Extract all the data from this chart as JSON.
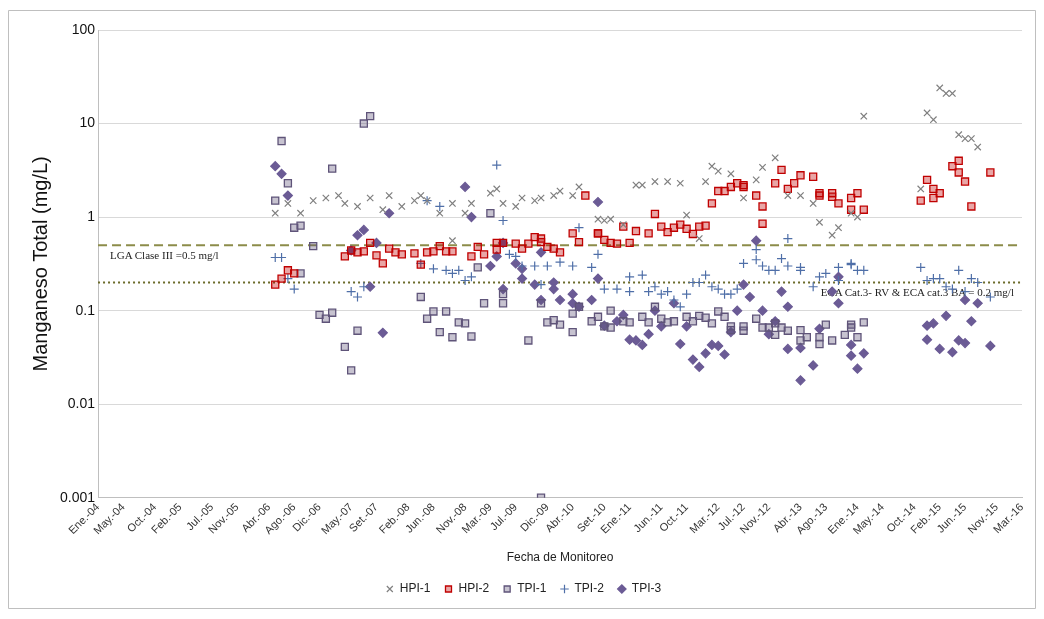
{
  "chart_data": {
    "type": "scatter",
    "xlabel": "Fecha de Monitoreo",
    "ylabel": "Manganeso Total (mg/L)",
    "log": "y",
    "grid": "y",
    "legend": "bottom",
    "xlim": [
      "2004-01",
      "2016-03"
    ],
    "xticks": [
      {
        "value": "2004-01",
        "label": "Ene.-04"
      },
      {
        "value": "2004-05",
        "label": "May.-04"
      },
      {
        "value": "2004-10",
        "label": "Oct.-04"
      },
      {
        "value": "2005-02",
        "label": "Feb.-05"
      },
      {
        "value": "2005-07",
        "label": "Jul.-05"
      },
      {
        "value": "2005-11",
        "label": "Nov.-05"
      },
      {
        "value": "2006-04",
        "label": "Abr.-06"
      },
      {
        "value": "2006-08",
        "label": "Ago.-06"
      },
      {
        "value": "2006-12",
        "label": "Dic.-06"
      },
      {
        "value": "2007-05",
        "label": "May.-07"
      },
      {
        "value": "2007-09",
        "label": "Set.-07"
      },
      {
        "value": "2008-02",
        "label": "Feb.-08"
      },
      {
        "value": "2008-06",
        "label": "Jun.-08"
      },
      {
        "value": "2008-11",
        "label": "Nov.-08"
      },
      {
        "value": "2009-03",
        "label": "Mar.-09"
      },
      {
        "value": "2009-07",
        "label": "Jul.-09"
      },
      {
        "value": "2009-12",
        "label": "Dic.-09"
      },
      {
        "value": "2010-04",
        "label": "Abr.-10"
      },
      {
        "value": "2010-09",
        "label": "Set.-10"
      },
      {
        "value": "2011-01",
        "label": "Ene.-11"
      },
      {
        "value": "2011-06",
        "label": "Jun.-11"
      },
      {
        "value": "2011-10",
        "label": "Oct.-11"
      },
      {
        "value": "2012-03",
        "label": "Mar.-12"
      },
      {
        "value": "2012-07",
        "label": "Jul.-12"
      },
      {
        "value": "2012-11",
        "label": "Nov.-12"
      },
      {
        "value": "2013-04",
        "label": "Abr.-13"
      },
      {
        "value": "2013-08",
        "label": "Ago.-13"
      },
      {
        "value": "2014-01",
        "label": "Ene.-14"
      },
      {
        "value": "2014-05",
        "label": "May.-14"
      },
      {
        "value": "2014-10",
        "label": "Oct.-14"
      },
      {
        "value": "2015-02",
        "label": "Feb.-15"
      },
      {
        "value": "2015-06",
        "label": "Jun.-15"
      },
      {
        "value": "2015-11",
        "label": "Nov.-15"
      },
      {
        "value": "2016-03",
        "label": "Mar.-16"
      }
    ],
    "ylim": [
      0.001,
      100
    ],
    "yticks": [
      0.001,
      0.01,
      0.1,
      1,
      10,
      100
    ],
    "ref_lines": [
      {
        "axis": "y",
        "value": 0.5,
        "label": "LGA Clase III =0.5 mg/l",
        "color": "#8c8c4a",
        "line_style": "dashed"
      },
      {
        "axis": "y",
        "value": 0.2,
        "label": "ECA Cat.3- RV & ECA cat.3 BA = 0.2 mg/l",
        "color": "#6b6b2a",
        "line_style": "dotted"
      }
    ],
    "series": [
      {
        "name": "HPI-1",
        "color": "#808080",
        "marker": "x",
        "x": [
          "2006-05",
          "2006-07",
          "2006-09",
          "2006-11",
          "2007-01",
          "2007-03",
          "2007-04",
          "2007-06",
          "2007-08",
          "2007-10",
          "2007-11",
          "2008-01",
          "2008-03",
          "2008-04",
          "2008-05",
          "2008-07",
          "2008-09",
          "2008-09",
          "2008-11",
          "2008-12",
          "2009-03",
          "2009-04",
          "2009-05",
          "2009-07",
          "2009-08",
          "2009-10",
          "2009-11",
          "2010-01",
          "2010-02",
          "2010-04",
          "2010-05",
          "2010-08",
          "2010-09",
          "2010-10",
          "2010-12",
          "2011-02",
          "2011-03",
          "2011-05",
          "2011-07",
          "2011-09",
          "2011-10",
          "2011-12",
          "2012-01",
          "2012-02",
          "2012-03",
          "2012-05",
          "2012-07",
          "2012-09",
          "2012-10",
          "2012-12",
          "2013-02",
          "2013-04",
          "2013-06",
          "2013-07",
          "2013-09",
          "2013-10",
          "2013-12",
          "2014-01",
          "2014-02",
          "2014-11",
          "2014-12",
          "2015-01",
          "2015-02",
          "2015-03",
          "2015-04",
          "2015-05",
          "2015-06",
          "2015-07",
          "2015-08"
        ],
        "values": [
          1.1,
          1.4,
          1.1,
          1.5,
          1.6,
          1.7,
          1.4,
          1.3,
          1.6,
          1.2,
          1.7,
          1.3,
          1.5,
          1.7,
          1.5,
          1.1,
          1.4,
          0.56,
          1.1,
          1.4,
          1.8,
          2,
          1.4,
          1.3,
          1.6,
          1.5,
          1.6,
          1.7,
          1.9,
          1.7,
          2.1,
          0.95,
          0.92,
          0.95,
          0.83,
          2.2,
          2.2,
          2.4,
          2.4,
          2.3,
          1.05,
          0.59,
          2.4,
          3.5,
          3.1,
          2.9,
          1.6,
          2.5,
          3.4,
          4.3,
          1.7,
          1.7,
          1.4,
          0.88,
          0.64,
          0.77,
          1.1,
          1,
          12,
          2,
          13,
          11,
          24,
          21,
          21,
          7.6,
          6.9,
          6.9,
          5.6
        ]
      },
      {
        "name": "HPI-2",
        "color": "#c00000",
        "marker": "square",
        "x": [
          "2006-05",
          "2006-06",
          "2006-07",
          "2006-08",
          "2007-04",
          "2007-05",
          "2007-06",
          "2007-07",
          "2007-08",
          "2007-09",
          "2007-10",
          "2007-11",
          "2007-12",
          "2008-01",
          "2008-03",
          "2008-04",
          "2008-05",
          "2008-06",
          "2008-07",
          "2008-08",
          "2008-09",
          "2008-12",
          "2009-01",
          "2009-02",
          "2009-04",
          "2009-04",
          "2009-05",
          "2009-07",
          "2009-08",
          "2009-09",
          "2009-10",
          "2009-11",
          "2009-11",
          "2009-12",
          "2010-01",
          "2010-02",
          "2010-04",
          "2010-05",
          "2010-06",
          "2010-08",
          "2010-08",
          "2010-09",
          "2010-10",
          "2010-11",
          "2010-12",
          "2011-01",
          "2011-02",
          "2011-04",
          "2011-05",
          "2011-06",
          "2011-07",
          "2011-08",
          "2011-09",
          "2011-10",
          "2011-11",
          "2011-12",
          "2012-01",
          "2012-02",
          "2012-03",
          "2012-04",
          "2012-05",
          "2012-06",
          "2012-07",
          "2012-07",
          "2012-09",
          "2012-10",
          "2012-10",
          "2012-12",
          "2013-01",
          "2013-02",
          "2013-03",
          "2013-04",
          "2013-06",
          "2013-07",
          "2013-07",
          "2013-09",
          "2013-09",
          "2013-10",
          "2013-12",
          "2013-12",
          "2014-01",
          "2014-02",
          "2014-11",
          "2014-12",
          "2015-01",
          "2015-01",
          "2015-02",
          "2015-04",
          "2015-05",
          "2015-05",
          "2015-06",
          "2015-07",
          "2015-10"
        ],
        "values": [
          0.19,
          0.22,
          0.27,
          0.25,
          0.38,
          0.44,
          0.42,
          0.43,
          0.53,
          0.39,
          0.32,
          0.46,
          0.42,
          0.4,
          0.41,
          0.31,
          0.42,
          0.43,
          0.49,
          0.43,
          0.43,
          0.38,
          0.48,
          0.4,
          0.45,
          0.53,
          0.53,
          0.52,
          0.46,
          0.52,
          0.61,
          0.54,
          0.59,
          0.48,
          0.46,
          0.42,
          0.67,
          0.54,
          1.7,
          0.67,
          0.67,
          0.57,
          0.53,
          0.52,
          0.79,
          0.53,
          0.71,
          0.67,
          1.08,
          0.79,
          0.69,
          0.77,
          0.83,
          0.75,
          0.66,
          0.79,
          0.81,
          1.4,
          1.9,
          1.9,
          2.1,
          2.3,
          2.2,
          2.1,
          1.7,
          1.3,
          0.85,
          2.3,
          3.2,
          2,
          2.3,
          2.8,
          2.7,
          1.7,
          1.8,
          1.8,
          1.65,
          1.4,
          1.6,
          1.2,
          1.8,
          1.2,
          1.5,
          2.5,
          2,
          1.6,
          1.8,
          3.5,
          4,
          3,
          2.4,
          1.3,
          3
        ]
      },
      {
        "name": "TPI-1",
        "color": "#5f5479",
        "marker": "square",
        "x": [
          "2006-05",
          "2006-06",
          "2006-07",
          "2006-08",
          "2006-09",
          "2006-09",
          "2006-11",
          "2006-12",
          "2007-01",
          "2007-02",
          "2007-02",
          "2007-04",
          "2007-05",
          "2007-06",
          "2007-07",
          "2007-08",
          "2008-04",
          "2008-05",
          "2008-06",
          "2008-07",
          "2008-08",
          "2008-09",
          "2008-10",
          "2008-11",
          "2008-12",
          "2009-01",
          "2009-02",
          "2009-03",
          "2009-05",
          "2009-05",
          "2009-09",
          "2009-11",
          "2009-11",
          "2009-12",
          "2010-01",
          "2010-02",
          "2010-04",
          "2010-04",
          "2010-05",
          "2010-07",
          "2010-08",
          "2010-09",
          "2010-10",
          "2010-10",
          "2010-12",
          "2011-01",
          "2011-03",
          "2011-04",
          "2011-05",
          "2011-06",
          "2011-07",
          "2011-08",
          "2011-10",
          "2011-11",
          "2011-12",
          "2012-01",
          "2012-02",
          "2012-03",
          "2012-04",
          "2012-05",
          "2012-05",
          "2012-07",
          "2012-07",
          "2012-09",
          "2012-10",
          "2012-11",
          "2012-12",
          "2012-12",
          "2013-01",
          "2013-02",
          "2013-04",
          "2013-04",
          "2013-05",
          "2013-07",
          "2013-07",
          "2013-08",
          "2013-09",
          "2013-11",
          "2013-12",
          "2013-12",
          "2014-01",
          "2014-02"
        ],
        "values": [
          1.5,
          6.5,
          2.3,
          0.77,
          0.81,
          0.25,
          0.49,
          0.09,
          0.082,
          0.095,
          3.3,
          0.041,
          0.023,
          0.061,
          10,
          12,
          0.14,
          0.082,
          0.098,
          0.059,
          0.098,
          0.052,
          0.075,
          0.073,
          0.053,
          0.29,
          0.12,
          1.1,
          0.15,
          0.12,
          0.048,
          0.001,
          0.12,
          0.075,
          0.079,
          0.071,
          0.059,
          0.093,
          0.11,
          0.077,
          0.086,
          0.068,
          0.1,
          0.066,
          0.077,
          0.075,
          0.086,
          0.075,
          0.11,
          0.082,
          0.075,
          0.077,
          0.086,
          0.077,
          0.088,
          0.084,
          0.073,
          0.098,
          0.086,
          0.062,
          0.068,
          0.061,
          0.068,
          0.082,
          0.066,
          0.066,
          0.073,
          0.055,
          0.066,
          0.061,
          0.048,
          0.062,
          0.052,
          0.044,
          0.052,
          0.071,
          0.048,
          0.055,
          0.066,
          0.071,
          0.052,
          0.075
        ]
      },
      {
        "name": "TPI-2",
        "color": "#4f6fa8",
        "marker": "cross",
        "x": [
          "2006-05",
          "2006-06",
          "2006-07",
          "2006-08",
          "2007-05",
          "2007-06",
          "2007-07",
          "2008-04",
          "2008-05",
          "2008-06",
          "2008-07",
          "2008-08",
          "2008-09",
          "2008-10",
          "2008-11",
          "2008-12",
          "2009-04",
          "2009-05",
          "2009-06",
          "2009-07",
          "2009-08",
          "2009-10",
          "2009-11",
          "2009-12",
          "2010-02",
          "2010-04",
          "2010-05",
          "2010-07",
          "2010-08",
          "2010-09",
          "2010-11",
          "2011-01",
          "2011-01",
          "2011-03",
          "2011-04",
          "2011-05",
          "2011-06",
          "2011-07",
          "2011-08",
          "2011-09",
          "2011-10",
          "2011-11",
          "2011-12",
          "2012-01",
          "2012-02",
          "2012-03",
          "2012-04",
          "2012-05",
          "2012-06",
          "2012-07",
          "2012-09",
          "2012-09",
          "2012-10",
          "2012-11",
          "2012-12",
          "2013-01",
          "2013-02",
          "2013-02",
          "2013-04",
          "2013-04",
          "2013-06",
          "2013-07",
          "2013-08",
          "2013-10",
          "2013-10",
          "2013-12",
          "2013-12",
          "2014-01",
          "2014-02",
          "2014-11",
          "2014-12",
          "2015-01",
          "2015-02",
          "2015-03",
          "2015-04",
          "2015-05",
          "2015-06",
          "2015-07",
          "2015-08",
          "2015-10"
        ],
        "values": [
          0.37,
          0.37,
          0.22,
          0.17,
          0.16,
          0.14,
          0.18,
          0.32,
          1.5,
          0.28,
          1.3,
          0.27,
          0.25,
          0.27,
          0.21,
          0.23,
          3.6,
          0.92,
          0.4,
          0.38,
          0.3,
          0.3,
          0.19,
          0.3,
          0.33,
          0.3,
          0.77,
          0.29,
          0.4,
          0.17,
          0.17,
          0.23,
          0.16,
          0.24,
          0.16,
          0.18,
          0.15,
          0.16,
          0.13,
          0.11,
          0.15,
          0.2,
          0.2,
          0.24,
          0.18,
          0.17,
          0.15,
          0.15,
          0.17,
          0.32,
          0.45,
          0.35,
          0.3,
          0.27,
          0.27,
          0.36,
          0.59,
          0.3,
          0.27,
          0.29,
          0.18,
          0.23,
          0.25,
          0.21,
          0.29,
          0.32,
          0.31,
          0.27,
          0.27,
          0.29,
          0.21,
          0.22,
          0.22,
          0.18,
          0.17,
          0.27,
          0.16,
          0.22,
          0.2,
          0.14
        ]
      },
      {
        "name": "TPI-3",
        "color": "#6b5b95",
        "marker": "diamond",
        "x": [
          "2006-05",
          "2006-06",
          "2006-07",
          "2007-05",
          "2007-06",
          "2007-07",
          "2007-08",
          "2007-09",
          "2007-10",
          "2007-11",
          "2008-11",
          "2008-12",
          "2009-03",
          "2009-04",
          "2009-05",
          "2009-05",
          "2009-07",
          "2009-08",
          "2009-08",
          "2009-10",
          "2009-11",
          "2009-11",
          "2010-01",
          "2010-01",
          "2010-02",
          "2010-04",
          "2010-04",
          "2010-05",
          "2010-07",
          "2010-08",
          "2010-08",
          "2010-09",
          "2010-11",
          "2010-12",
          "2011-01",
          "2011-02",
          "2011-03",
          "2011-04",
          "2011-05",
          "2011-06",
          "2011-08",
          "2011-09",
          "2011-10",
          "2011-11",
          "2011-12",
          "2012-01",
          "2012-02",
          "2012-03",
          "2012-04",
          "2012-05",
          "2012-06",
          "2012-07",
          "2012-08",
          "2012-09",
          "2012-10",
          "2012-11",
          "2012-12",
          "2013-01",
          "2013-02",
          "2013-02",
          "2013-04",
          "2013-04",
          "2013-06",
          "2013-07",
          "2013-09",
          "2013-10",
          "2013-10",
          "2013-12",
          "2013-12",
          "2014-01",
          "2014-02",
          "2014-12",
          "2014-12",
          "2015-01",
          "2015-02",
          "2015-03",
          "2015-04",
          "2015-05",
          "2015-06",
          "2015-06",
          "2015-07",
          "2015-08",
          "2015-10"
        ],
        "values": [
          3.5,
          2.9,
          1.7,
          0.44,
          0.64,
          0.73,
          0.18,
          0.53,
          0.058,
          1.1,
          2.1,
          1,
          0.3,
          0.38,
          0.53,
          0.17,
          0.32,
          0.28,
          0.22,
          0.19,
          0.42,
          0.13,
          0.2,
          0.17,
          0.13,
          0.15,
          0.12,
          0.11,
          0.13,
          1.45,
          0.22,
          0.069,
          0.077,
          0.09,
          0.049,
          0.048,
          0.043,
          0.056,
          0.1,
          0.068,
          0.12,
          0.044,
          0.068,
          0.03,
          0.025,
          0.035,
          0.043,
          0.042,
          0.034,
          0.059,
          0.1,
          0.19,
          0.14,
          0.56,
          0.1,
          0.056,
          0.077,
          0.16,
          0.11,
          0.039,
          0.04,
          0.018,
          0.026,
          0.064,
          0.16,
          0.12,
          0.23,
          0.043,
          0.033,
          0.024,
          0.035,
          0.069,
          0.049,
          0.073,
          0.039,
          0.088,
          0.036,
          0.048,
          0.13,
          0.045,
          0.077,
          0.12,
          0.042
        ]
      }
    ]
  }
}
